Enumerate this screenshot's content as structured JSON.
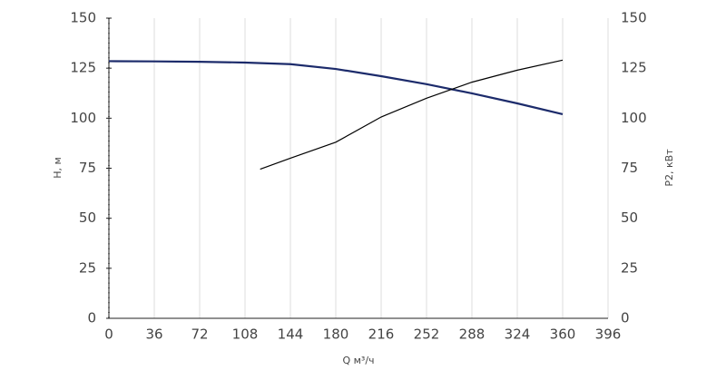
{
  "chart_data": {
    "type": "line",
    "x_label": "Q м³/ч",
    "y_label": "H, м",
    "y2_label": "P2, кВт",
    "series": [
      {
        "name": "H",
        "color": "#1c2b6b",
        "x": [
          0,
          36,
          72,
          108,
          144,
          180,
          216,
          252,
          288,
          324,
          360
        ],
        "values": [
          128.5,
          128.4,
          128.2,
          127.8,
          127,
          124.6,
          121,
          117,
          112.4,
          107.4,
          102
        ]
      },
      {
        "name": "P2",
        "color": "#000000",
        "axis": "y2",
        "x": [
          120,
          144,
          180,
          216,
          252,
          288,
          324,
          360
        ],
        "values": [
          74.5,
          80,
          88,
          100.6,
          110,
          118,
          124,
          129
        ]
      }
    ],
    "xlim": [
      0,
      396
    ],
    "xticks": [
      0,
      36,
      72,
      108,
      144,
      180,
      216,
      252,
      288,
      324,
      360,
      396
    ],
    "ylim": [
      0,
      150
    ],
    "yticks": [
      0,
      25,
      50,
      75,
      100,
      125,
      150
    ],
    "y2lim": [
      0,
      150
    ],
    "y2ticks": [
      0,
      25,
      50,
      75,
      100,
      125,
      150
    ],
    "grid": true
  }
}
